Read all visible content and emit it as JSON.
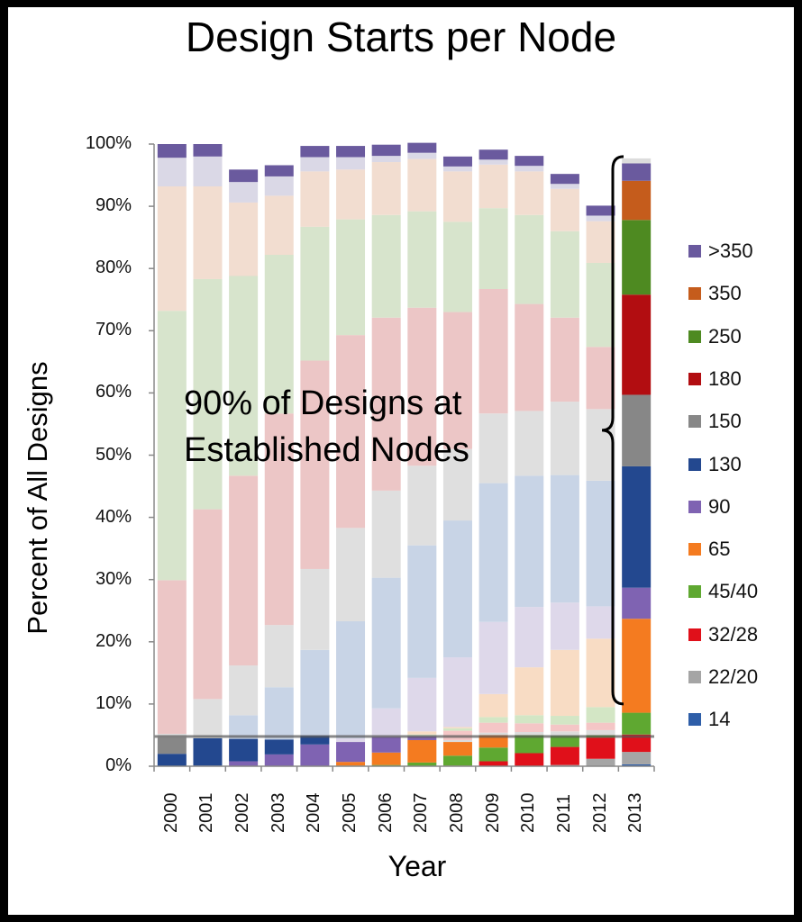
{
  "chart_data": {
    "type": "bar",
    "stacked": true,
    "percent": true,
    "title": "Design Starts per Node",
    "xlabel": "Year",
    "ylabel": "Percent of All Designs",
    "ylim": [
      0,
      100
    ],
    "yticks": [
      "0%",
      "10%",
      "20%",
      "30%",
      "40%",
      "50%",
      "60%",
      "70%",
      "80%",
      "90%",
      "100%"
    ],
    "grid": false,
    "legend_position": "right",
    "categories": [
      "2000",
      "2001",
      "2002",
      "2003",
      "2004",
      "2005",
      "2006",
      "2007",
      "2008",
      "2009",
      "2010",
      "2011",
      "2012",
      "2013"
    ],
    "series": [
      {
        "name": "14",
        "color": "#2e5ea8",
        "values": [
          0,
          0,
          0,
          0,
          0,
          0,
          0,
          0,
          0,
          0,
          0,
          0,
          0,
          0.3
        ]
      },
      {
        "name": "22/20",
        "color": "#a5a5a5",
        "values": [
          0,
          0,
          0,
          0,
          0,
          0,
          0,
          0,
          0,
          0,
          0,
          0.2,
          1.2,
          2.0
        ]
      },
      {
        "name": "32/28",
        "color": "#e0101a",
        "values": [
          0,
          0,
          0,
          0,
          0,
          0,
          0,
          0,
          0.1,
          0.8,
          2.1,
          2.9,
          3.4,
          2.8
        ]
      },
      {
        "name": "45/40",
        "color": "#5fa831",
        "values": [
          0,
          0,
          0,
          0,
          0,
          0.1,
          0.2,
          0.6,
          1.6,
          2.2,
          2.9,
          1.8,
          0.4,
          3.5
        ]
      },
      {
        "name": "65",
        "color": "#f47b20",
        "values": [
          0,
          0,
          0,
          0,
          0,
          0.6,
          2.0,
          3.6,
          2.2,
          2.0,
          0,
          0,
          0,
          15.1
        ]
      },
      {
        "name": "90",
        "color": "#7f63b2",
        "values": [
          0,
          0.1,
          0.8,
          1.9,
          3.5,
          3.2,
          2.5,
          0.6,
          0,
          0,
          0,
          0,
          0,
          5.0
        ]
      },
      {
        "name": "130",
        "color": "#23488f",
        "values": [
          2.0,
          4.4,
          3.6,
          2.4,
          1.4,
          0,
          0,
          0,
          0,
          0,
          0,
          0,
          0,
          19.5
        ]
      },
      {
        "name": "150",
        "color": "#878787",
        "values": [
          2.6,
          0,
          0,
          0,
          0,
          0,
          0,
          0,
          0,
          0,
          0,
          0,
          0,
          11.5
        ]
      },
      {
        "name": "180",
        "color": "#b20d11",
        "values": [
          0,
          0,
          0,
          0,
          0,
          0,
          0,
          0,
          0,
          0,
          0,
          0,
          0,
          16.1
        ]
      },
      {
        "name": "250",
        "color": "#4e8a21",
        "values": [
          0,
          0,
          0,
          0,
          0,
          0,
          0,
          0,
          0,
          0,
          0,
          0,
          0,
          12.0
        ]
      },
      {
        "name": "350",
        "color": "#c55c1c",
        "values": [
          0,
          0,
          0,
          0,
          0,
          0,
          0,
          0,
          0,
          0,
          0,
          0,
          0,
          6.3
        ]
      },
      {
        "name": ">350",
        "color": "#6a5a9e",
        "values": [
          0,
          0,
          0,
          0,
          0,
          0,
          0,
          0,
          0,
          0,
          0,
          0,
          0,
          2.8
        ]
      }
    ],
    "faded_layers": [
      {
        "name": "14",
        "color": "#c9d6ea",
        "values": [
          0,
          0,
          0,
          0,
          0,
          0,
          0,
          0,
          0,
          0,
          0,
          0,
          0,
          0
        ]
      },
      {
        "name": "22/20",
        "color": "#dcdcdc",
        "values": [
          0,
          0,
          0,
          0,
          0,
          0,
          0,
          0.1,
          0.3,
          0.4,
          0.5,
          0.7,
          0.8,
          0.8
        ]
      },
      {
        "name": "32/28",
        "color": "#f4c6c6",
        "values": [
          0,
          0,
          0,
          0,
          0,
          0,
          0,
          0,
          1.5,
          1.6,
          1.4,
          1.1,
          1.2,
          0
        ]
      },
      {
        "name": "45/40",
        "color": "#d3e6c5",
        "values": [
          0,
          0,
          0,
          0,
          0,
          0,
          0,
          0.2,
          0.4,
          0.9,
          1.3,
          1.4,
          2.5,
          0
        ]
      },
      {
        "name": "65",
        "color": "#f8dcc4",
        "values": [
          0,
          0,
          0,
          0,
          0,
          0,
          0,
          0.5,
          0.2,
          3.7,
          7.7,
          10.6,
          11.0,
          0
        ]
      },
      {
        "name": "90",
        "color": "#ded8ea",
        "values": [
          0,
          0,
          0,
          0,
          0,
          0.6,
          4.6,
          8.6,
          11.2,
          11.6,
          9.7,
          7.6,
          5.2,
          0
        ]
      },
      {
        "name": "130",
        "color": "#c8d4e6",
        "values": [
          0,
          0,
          3.8,
          8.4,
          13.8,
          18.8,
          21.0,
          21.3,
          22.0,
          22.3,
          21.1,
          20.5,
          20.2,
          0
        ]
      },
      {
        "name": "150",
        "color": "#dfdfdf",
        "values": [
          0.6,
          6.3,
          8.0,
          10.0,
          13.0,
          15.0,
          14.0,
          12.8,
          11.5,
          11.2,
          10.4,
          11.8,
          11.5,
          0
        ]
      },
      {
        "name": "180",
        "color": "#ecc6c6",
        "values": [
          24.7,
          30.5,
          30.5,
          34.0,
          33.5,
          31.0,
          27.8,
          25.4,
          22.0,
          20.0,
          17.2,
          13.5,
          10.0,
          0
        ]
      },
      {
        "name": "250",
        "color": "#d7e4cc",
        "values": [
          43.3,
          37.0,
          32.1,
          25.5,
          21.5,
          18.6,
          16.5,
          15.5,
          14.5,
          13.0,
          14.3,
          13.9,
          13.5,
          0
        ]
      },
      {
        "name": "350",
        "color": "#f2ddd0",
        "values": [
          20.0,
          14.9,
          11.8,
          9.5,
          8.9,
          8.0,
          8.5,
          8.4,
          8.1,
          7.0,
          7.0,
          6.8,
          6.7,
          0
        ]
      },
      {
        "name": ">350",
        "color": "#dad8e6",
        "values": [
          4.6,
          4.8,
          3.3,
          3.1,
          2.3,
          2.0,
          1.0,
          1.0,
          0.8,
          0.8,
          0.9,
          0.8,
          0.9,
          0
        ]
      },
      {
        "name": ">350-top",
        "color": "#6a5a9e",
        "values": [
          2.2,
          2.0,
          2.0,
          1.8,
          1.8,
          1.8,
          1.8,
          1.6,
          1.6,
          1.6,
          1.6,
          1.6,
          1.6,
          0
        ]
      }
    ],
    "annotation": {
      "lines": [
        "90% of Designs at",
        "Established Nodes"
      ],
      "brace_range_percent": [
        10,
        98
      ]
    }
  }
}
